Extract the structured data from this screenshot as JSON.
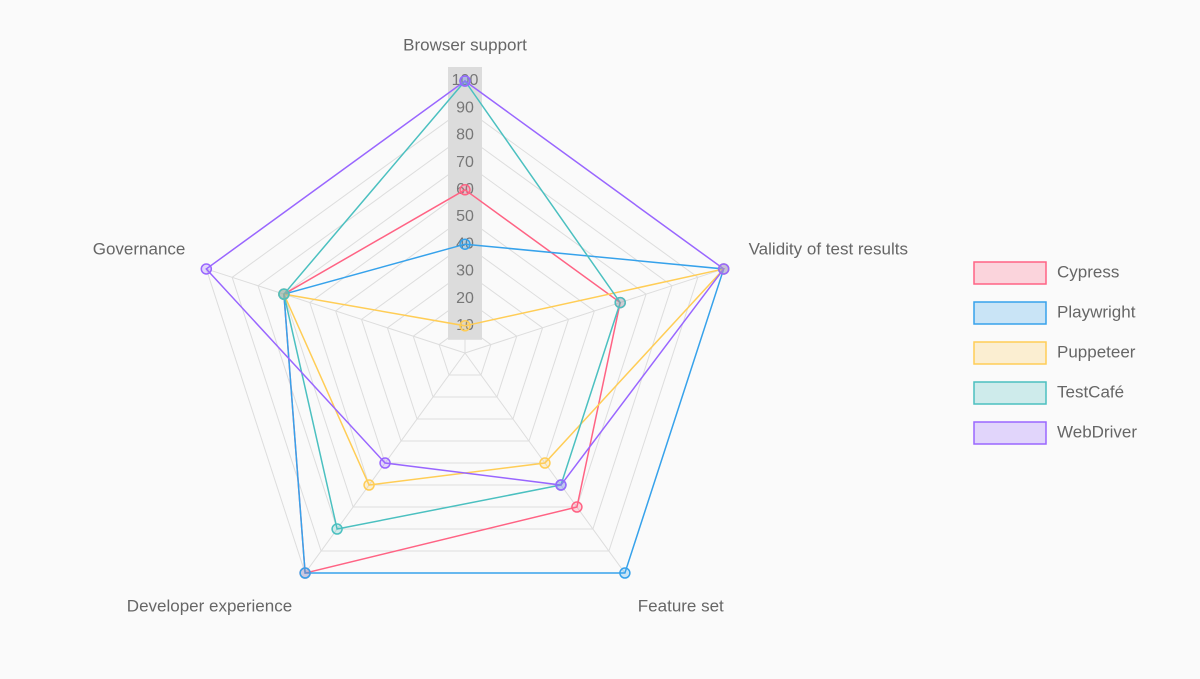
{
  "chart_data": {
    "type": "radar",
    "categories": [
      "Browser support",
      "Validity of test results",
      "Feature set",
      "Developer experience",
      "Governance"
    ],
    "rlim": [
      0,
      100
    ],
    "rticks": [
      10,
      20,
      30,
      40,
      50,
      60,
      70,
      80,
      90,
      100
    ],
    "grid": true,
    "legend": "right",
    "series": [
      {
        "name": "Cypress",
        "color": "#ff6384",
        "values": [
          60,
          60,
          70,
          100,
          70
        ]
      },
      {
        "name": "Playwright",
        "color": "#36a2eb",
        "values": [
          40,
          100,
          100,
          100,
          70
        ]
      },
      {
        "name": "Puppeteer",
        "color": "#ffcd56",
        "values": [
          10,
          100,
          50,
          60,
          70
        ]
      },
      {
        "name": "TestCafé",
        "color": "#4bc0c0",
        "values": [
          100,
          60,
          60,
          80,
          70
        ]
      },
      {
        "name": "WebDriver",
        "color": "#9966ff",
        "values": [
          100,
          100,
          60,
          50,
          100
        ]
      }
    ]
  }
}
